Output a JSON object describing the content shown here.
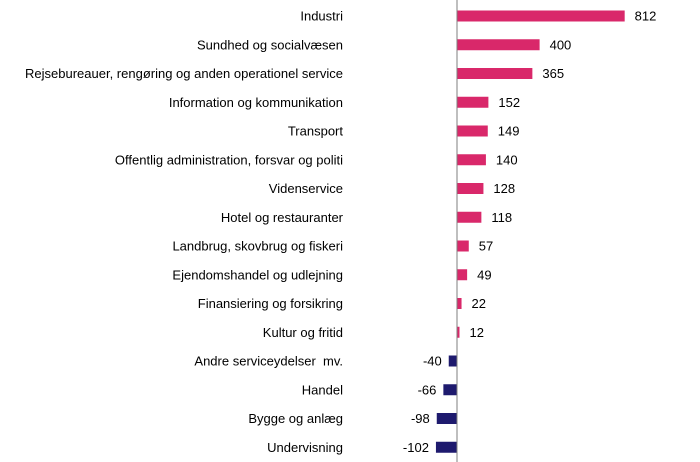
{
  "chart_data": {
    "type": "bar",
    "orientation": "horizontal",
    "categories": [
      "Industri",
      "Sundhed og socialvæsen",
      "Rejsebureauer, rengøring og anden operationel service",
      "Information og kommunikation",
      "Transport",
      "Offentlig administration, forsvar og politi",
      "Videnservice",
      "Hotel og restauranter",
      "Landbrug, skovbrug og fiskeri",
      "Ejendomshandel og udlejning",
      "Finansiering og forsikring",
      "Kultur og fritid",
      "Andre serviceydelser  mv.",
      "Handel",
      "Bygge og anlæg",
      "Undervisning"
    ],
    "values": [
      812,
      400,
      365,
      152,
      149,
      140,
      128,
      118,
      57,
      49,
      22,
      12,
      -40,
      -66,
      -98,
      -102
    ],
    "data_labels": [
      "812",
      "400",
      "365",
      "152",
      "149",
      "140",
      "128",
      "118",
      "57",
      "49",
      "22",
      "12",
      "-40",
      "-66",
      "-98",
      "-102"
    ],
    "colors": {
      "positive": "#d9286a",
      "negative": "#1e1a6e",
      "axis": "#7f7f7f"
    },
    "title": "",
    "xlabel": "",
    "ylabel": "",
    "grid": false,
    "legend": "none"
  }
}
